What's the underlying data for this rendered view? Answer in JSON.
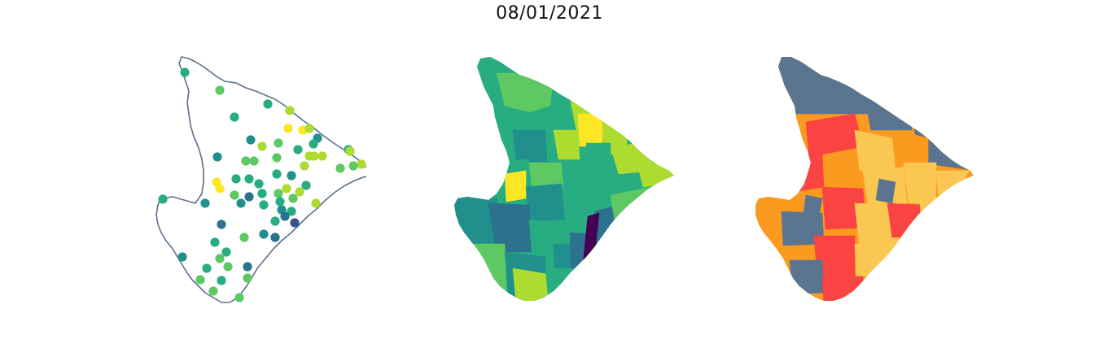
{
  "figure": {
    "title": "08/01/2021"
  },
  "colors": {
    "outline": "#5b7089",
    "viridis": [
      "#440154",
      "#3b528b",
      "#2c728e",
      "#21908d",
      "#27ad81",
      "#5ec962",
      "#addc30",
      "#fde725"
    ],
    "classes": [
      "#5b7590",
      "#fa4343",
      "#fa9a1e",
      "#fbc753"
    ]
  },
  "maps": [
    {
      "kind": "points-on-outline",
      "description_icon": "state-outline-with-stations"
    },
    {
      "kind": "choropleth-continuous",
      "description_icon": "municipalities-viridis"
    },
    {
      "kind": "choropleth-categorical",
      "description_icon": "municipalities-classes"
    }
  ]
}
